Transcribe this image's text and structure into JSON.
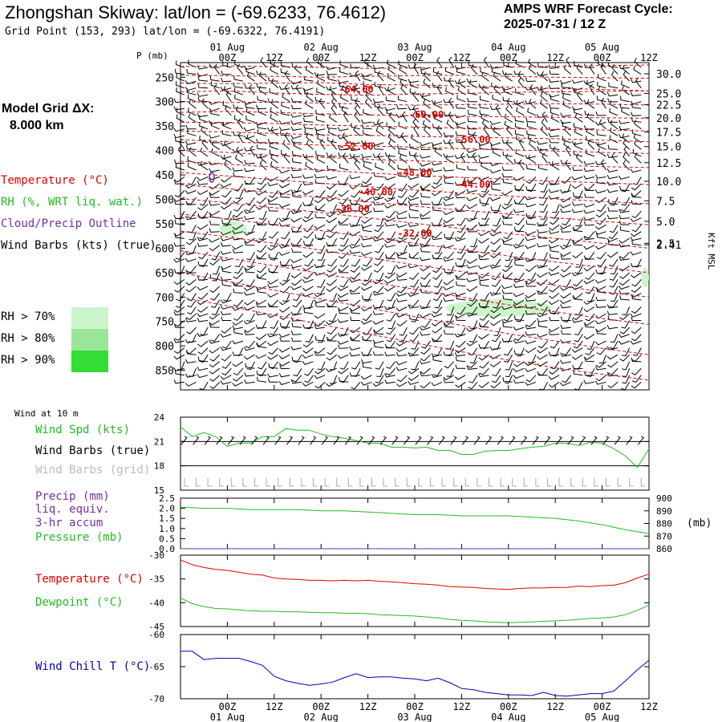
{
  "header": {
    "title": "Zhongshan Skiway:  lat/lon = (-69.6233, 76.4612)",
    "subtitle": "Grid Point (153, 293) lat/lon = (-69.6322, 76.4191)",
    "cycle_line1": "AMPS WRF Forecast Cycle:",
    "cycle_line2": "2025-07-31 / 12  Z"
  },
  "model_grid": {
    "line1": "Model Grid ΔX:",
    "line2": "8.000 km"
  },
  "time_axis": {
    "hour_labels": [
      "00Z",
      "12Z",
      "00Z",
      "12Z",
      "00Z",
      "12Z",
      "00Z",
      "12Z",
      "00Z",
      "12Z"
    ],
    "hour_values": [
      12,
      24,
      36,
      48,
      60,
      72,
      84,
      96,
      108,
      120
    ],
    "day_labels": [
      "01 Aug",
      "02 Aug",
      "03 Aug",
      "04 Aug",
      "05 Aug"
    ],
    "day_values": [
      12,
      36,
      60,
      84,
      108
    ],
    "range": [
      0,
      120
    ]
  },
  "legend": {
    "temperature": "Temperature (°C)",
    "rh": "RH (%, WRT liq. wat.)",
    "cloud": "Cloud/Precip Outline",
    "wind_barbs": "Wind Barbs (kts) (true)",
    "rh70": "RH > 70%",
    "rh80": "RH > 80%",
    "rh90": "RH > 90%",
    "rh_colors": [
      "#ccf5cc",
      "#99e699",
      "#33dd33"
    ]
  },
  "colors": {
    "temperature": "#dd0000",
    "rh": "#22bb22",
    "cloud": "#7030a0",
    "wind_chill": "#0000aa",
    "gray": "#aaaaaa"
  },
  "chart_data": [
    {
      "type": "contour",
      "name": "cross-section",
      "y_axis_left_label": "P (mb)",
      "pressure_ticks": [
        250,
        300,
        350,
        400,
        450,
        500,
        550,
        600,
        650,
        700,
        750,
        800,
        850
      ],
      "pressure_range": [
        220,
        890
      ],
      "height_axis_label": "Kft MSL",
      "height_ticks": [
        {
          "label": "30.0",
          "p": 243
        },
        {
          "label": "25.0",
          "p": 283
        },
        {
          "label": "22.5",
          "p": 306
        },
        {
          "label": "20.0",
          "p": 333
        },
        {
          "label": "17.5",
          "p": 362
        },
        {
          "label": "15.0",
          "p": 392
        },
        {
          "label": "12.5",
          "p": 425
        },
        {
          "label": "10.0",
          "p": 463
        },
        {
          "label": "7.5",
          "p": 503
        },
        {
          "label": "5.0",
          "p": 545
        },
        {
          "label": "2.5",
          "p": 590
        },
        {
          "label": "2.41",
          "p": 593
        }
      ],
      "temperature_contour_labels": [
        {
          "text": "-64.00",
          "t": 45,
          "p": 275
        },
        {
          "text": "-60.00",
          "t": 63,
          "p": 327
        },
        {
          "text": "-56.00",
          "t": 75,
          "p": 378
        },
        {
          "text": "-52.00",
          "t": 45,
          "p": 392
        },
        {
          "text": "-48.00",
          "t": 60,
          "p": 445
        },
        {
          "text": "-44.00",
          "t": 75,
          "p": 470
        },
        {
          "text": "-40.00",
          "t": 50,
          "p": 485
        },
        {
          "text": "-36.00",
          "t": 44,
          "p": 520
        },
        {
          "text": "-32.00",
          "t": 60,
          "p": 570
        }
      ],
      "temperature_contours": [
        {
          "p": [
            228,
            227,
            228,
            230,
            232,
            231,
            230,
            229,
            228,
            226,
            225
          ]
        },
        {
          "p": [
            246,
            247,
            248,
            250,
            248,
            247,
            246,
            248,
            250,
            251,
            252
          ]
        },
        {
          "p": [
            262,
            263,
            262,
            261,
            265,
            266,
            268,
            270,
            273,
            275,
            278
          ]
        },
        {
          "p": [
            280,
            278,
            282,
            285,
            287,
            284,
            283,
            281,
            280,
            279,
            278
          ]
        },
        {
          "p": [
            300,
            302,
            301,
            303,
            305,
            307,
            306,
            305,
            304,
            305,
            307
          ]
        },
        {
          "p": [
            322,
            320,
            322,
            325,
            327,
            329,
            330,
            331,
            332,
            333,
            334
          ]
        },
        {
          "p": [
            342,
            343,
            345,
            348,
            350,
            352,
            354,
            355,
            357,
            358,
            360
          ]
        },
        {
          "p": [
            360,
            362,
            365,
            368,
            369,
            371,
            373,
            374,
            376,
            379,
            382
          ]
        },
        {
          "p": [
            378,
            382,
            386,
            389,
            391,
            393,
            396,
            399,
            401,
            404,
            406
          ]
        },
        {
          "p": [
            400,
            404,
            410,
            414,
            418,
            421,
            424,
            427,
            430,
            433,
            435
          ]
        },
        {
          "p": [
            422,
            428,
            434,
            440,
            446,
            451,
            455,
            459,
            463,
            466,
            470
          ]
        },
        {
          "p": [
            445,
            452,
            460,
            467,
            474,
            481,
            487,
            493,
            499,
            504,
            509
          ]
        },
        {
          "p": [
            470,
            478,
            487,
            496,
            505,
            514,
            522,
            530,
            538,
            545,
            552
          ]
        },
        {
          "p": [
            498,
            507,
            517,
            527,
            538,
            549,
            560,
            570,
            580,
            590,
            600
          ]
        },
        {
          "p": [
            530,
            540,
            552,
            564,
            577,
            590,
            603,
            616,
            628,
            639,
            650
          ]
        },
        {
          "p": [
            565,
            577,
            590,
            604,
            619,
            634,
            648,
            662,
            676,
            689,
            700
          ]
        },
        {
          "p": [
            605,
            620,
            636,
            652,
            668,
            684,
            700,
            716,
            730,
            744,
            756
          ]
        },
        {
          "p": [
            650,
            668,
            686,
            704,
            722,
            740,
            758,
            775,
            790,
            805,
            818
          ]
        },
        {
          "p": [
            700,
            718,
            737,
            756,
            775,
            794,
            812,
            829,
            845,
            858,
            870
          ]
        }
      ],
      "rh_regions": [
        {
          "t": [
            10,
            17
          ],
          "p": [
            545,
            575
          ]
        },
        {
          "t": [
            68,
            95
          ],
          "p": [
            705,
            740
          ]
        },
        {
          "t": [
            118,
            120
          ],
          "p": [
            640,
            680
          ]
        }
      ],
      "cloud_outline": {
        "t": 8,
        "p": 455
      }
    },
    {
      "type": "line",
      "name": "wind-speed",
      "label_small": "Wind at 10 m",
      "labels": [
        "Wind Spd (kts)",
        "Wind Barbs (true)",
        "Wind Barbs (grid)"
      ],
      "ylim": [
        15,
        24
      ],
      "yticks": [
        15,
        18,
        21,
        24
      ],
      "x": [
        0,
        3,
        6,
        9,
        12,
        15,
        18,
        21,
        24,
        27,
        30,
        33,
        36,
        39,
        42,
        45,
        48,
        51,
        54,
        57,
        60,
        63,
        66,
        69,
        72,
        75,
        78,
        81,
        84,
        87,
        90,
        93,
        96,
        99,
        102,
        105,
        108,
        111,
        114,
        117,
        120
      ],
      "values": [
        22.8,
        21.6,
        22.1,
        21.6,
        20.4,
        20.8,
        20.8,
        21.6,
        21.6,
        22.6,
        22.4,
        22.4,
        21.9,
        21.6,
        21.4,
        21.1,
        20.8,
        20.8,
        20.3,
        20.3,
        20.2,
        20.3,
        19.9,
        19.9,
        19.4,
        19.4,
        19.8,
        19.9,
        19.9,
        20.1,
        20.3,
        20.4,
        20.8,
        20.8,
        20.5,
        20.9,
        20.8,
        20.1,
        19.2,
        17.8,
        20.1
      ]
    },
    {
      "type": "line",
      "name": "precip-pressure",
      "labels": [
        "Precip (mm)",
        "liq. equiv.",
        "3-hr accum",
        "Pressure (mb)"
      ],
      "precip_ticks": [
        "0.0",
        "0.5",
        "1.0",
        "1.5",
        "2.0",
        "2.5"
      ],
      "pressure_ticks": [
        860,
        870,
        880,
        890,
        900
      ],
      "pressure_unit": "(mb)",
      "y2lim": [
        860,
        900
      ],
      "ylim": [
        0,
        2.5
      ],
      "x": [
        0,
        6,
        12,
        18,
        24,
        30,
        36,
        42,
        48,
        54,
        60,
        66,
        72,
        78,
        84,
        90,
        96,
        102,
        108,
        114,
        120
      ],
      "pressure": [
        893,
        892,
        892,
        891,
        891,
        891,
        890,
        890,
        889,
        888,
        887,
        887,
        886,
        886,
        886,
        885,
        884,
        882,
        879,
        875,
        872
      ],
      "precip": [
        0,
        0,
        0,
        0,
        0,
        0,
        0,
        0,
        0,
        0,
        0,
        0,
        0,
        0,
        0,
        0,
        0,
        0,
        0,
        0,
        0
      ]
    },
    {
      "type": "line",
      "name": "temperature-dewpoint",
      "labels": [
        "Temperature (°C)",
        "Dewpoint (°C)"
      ],
      "ylim": [
        -45,
        -30
      ],
      "yticks": [
        -45,
        -40,
        -35,
        -30
      ],
      "x": [
        0,
        3,
        6,
        9,
        12,
        15,
        18,
        21,
        24,
        27,
        30,
        33,
        36,
        39,
        42,
        45,
        48,
        51,
        54,
        57,
        60,
        63,
        66,
        69,
        72,
        75,
        78,
        81,
        84,
        87,
        90,
        93,
        96,
        99,
        102,
        105,
        108,
        111,
        114,
        117,
        120
      ],
      "temperature": [
        -31.0,
        -32.0,
        -32.6,
        -33.0,
        -33.2,
        -33.6,
        -34.0,
        -34.2,
        -34.8,
        -35.0,
        -35.1,
        -35.3,
        -35.3,
        -35.4,
        -35.3,
        -35.4,
        -35.3,
        -35.5,
        -35.6,
        -35.8,
        -36.0,
        -36.1,
        -36.3,
        -36.6,
        -36.7,
        -36.8,
        -37.0,
        -37.1,
        -37.2,
        -37.0,
        -36.9,
        -36.9,
        -36.8,
        -36.8,
        -36.5,
        -36.6,
        -36.4,
        -36.3,
        -35.8,
        -34.8,
        -34.0
      ],
      "dewpoint": [
        -39.0,
        -40.2,
        -40.8,
        -41.2,
        -41.3,
        -41.5,
        -41.7,
        -41.8,
        -41.8,
        -41.9,
        -41.9,
        -42.0,
        -42.1,
        -42.1,
        -42.2,
        -42.2,
        -42.3,
        -42.5,
        -42.6,
        -42.7,
        -42.8,
        -43.0,
        -43.2,
        -43.5,
        -43.7,
        -43.8,
        -44.0,
        -44.1,
        -44.2,
        -44.1,
        -44.0,
        -43.9,
        -43.8,
        -43.7,
        -43.5,
        -43.3,
        -43.2,
        -43.0,
        -42.5,
        -41.6,
        -40.5
      ]
    },
    {
      "type": "line",
      "name": "wind-chill",
      "labels": [
        "Wind Chill T (°C)"
      ],
      "ylim": [
        -70,
        -60
      ],
      "yticks": [
        -70,
        -65,
        -60
      ],
      "x": [
        0,
        3,
        6,
        9,
        12,
        15,
        18,
        21,
        24,
        27,
        30,
        33,
        36,
        39,
        42,
        45,
        48,
        51,
        54,
        57,
        60,
        63,
        66,
        69,
        72,
        75,
        78,
        81,
        84,
        87,
        90,
        93,
        96,
        99,
        102,
        105,
        108,
        111,
        114,
        117,
        120
      ],
      "values": [
        -62.6,
        -62.6,
        -63.9,
        -63.7,
        -63.7,
        -63.7,
        -64.2,
        -64.8,
        -66.5,
        -67.2,
        -67.6,
        -67.9,
        -67.7,
        -67.4,
        -66.7,
        -66.1,
        -66.7,
        -66.6,
        -66.6,
        -66.8,
        -66.9,
        -67.2,
        -66.8,
        -67.5,
        -68.4,
        -68.6,
        -69.0,
        -69.2,
        -69.4,
        -69.4,
        -69.5,
        -69.0,
        -69.5,
        -69.6,
        -69.4,
        -69.2,
        -69.2,
        -68.8,
        -67.2,
        -65.5,
        -64.0
      ]
    }
  ]
}
